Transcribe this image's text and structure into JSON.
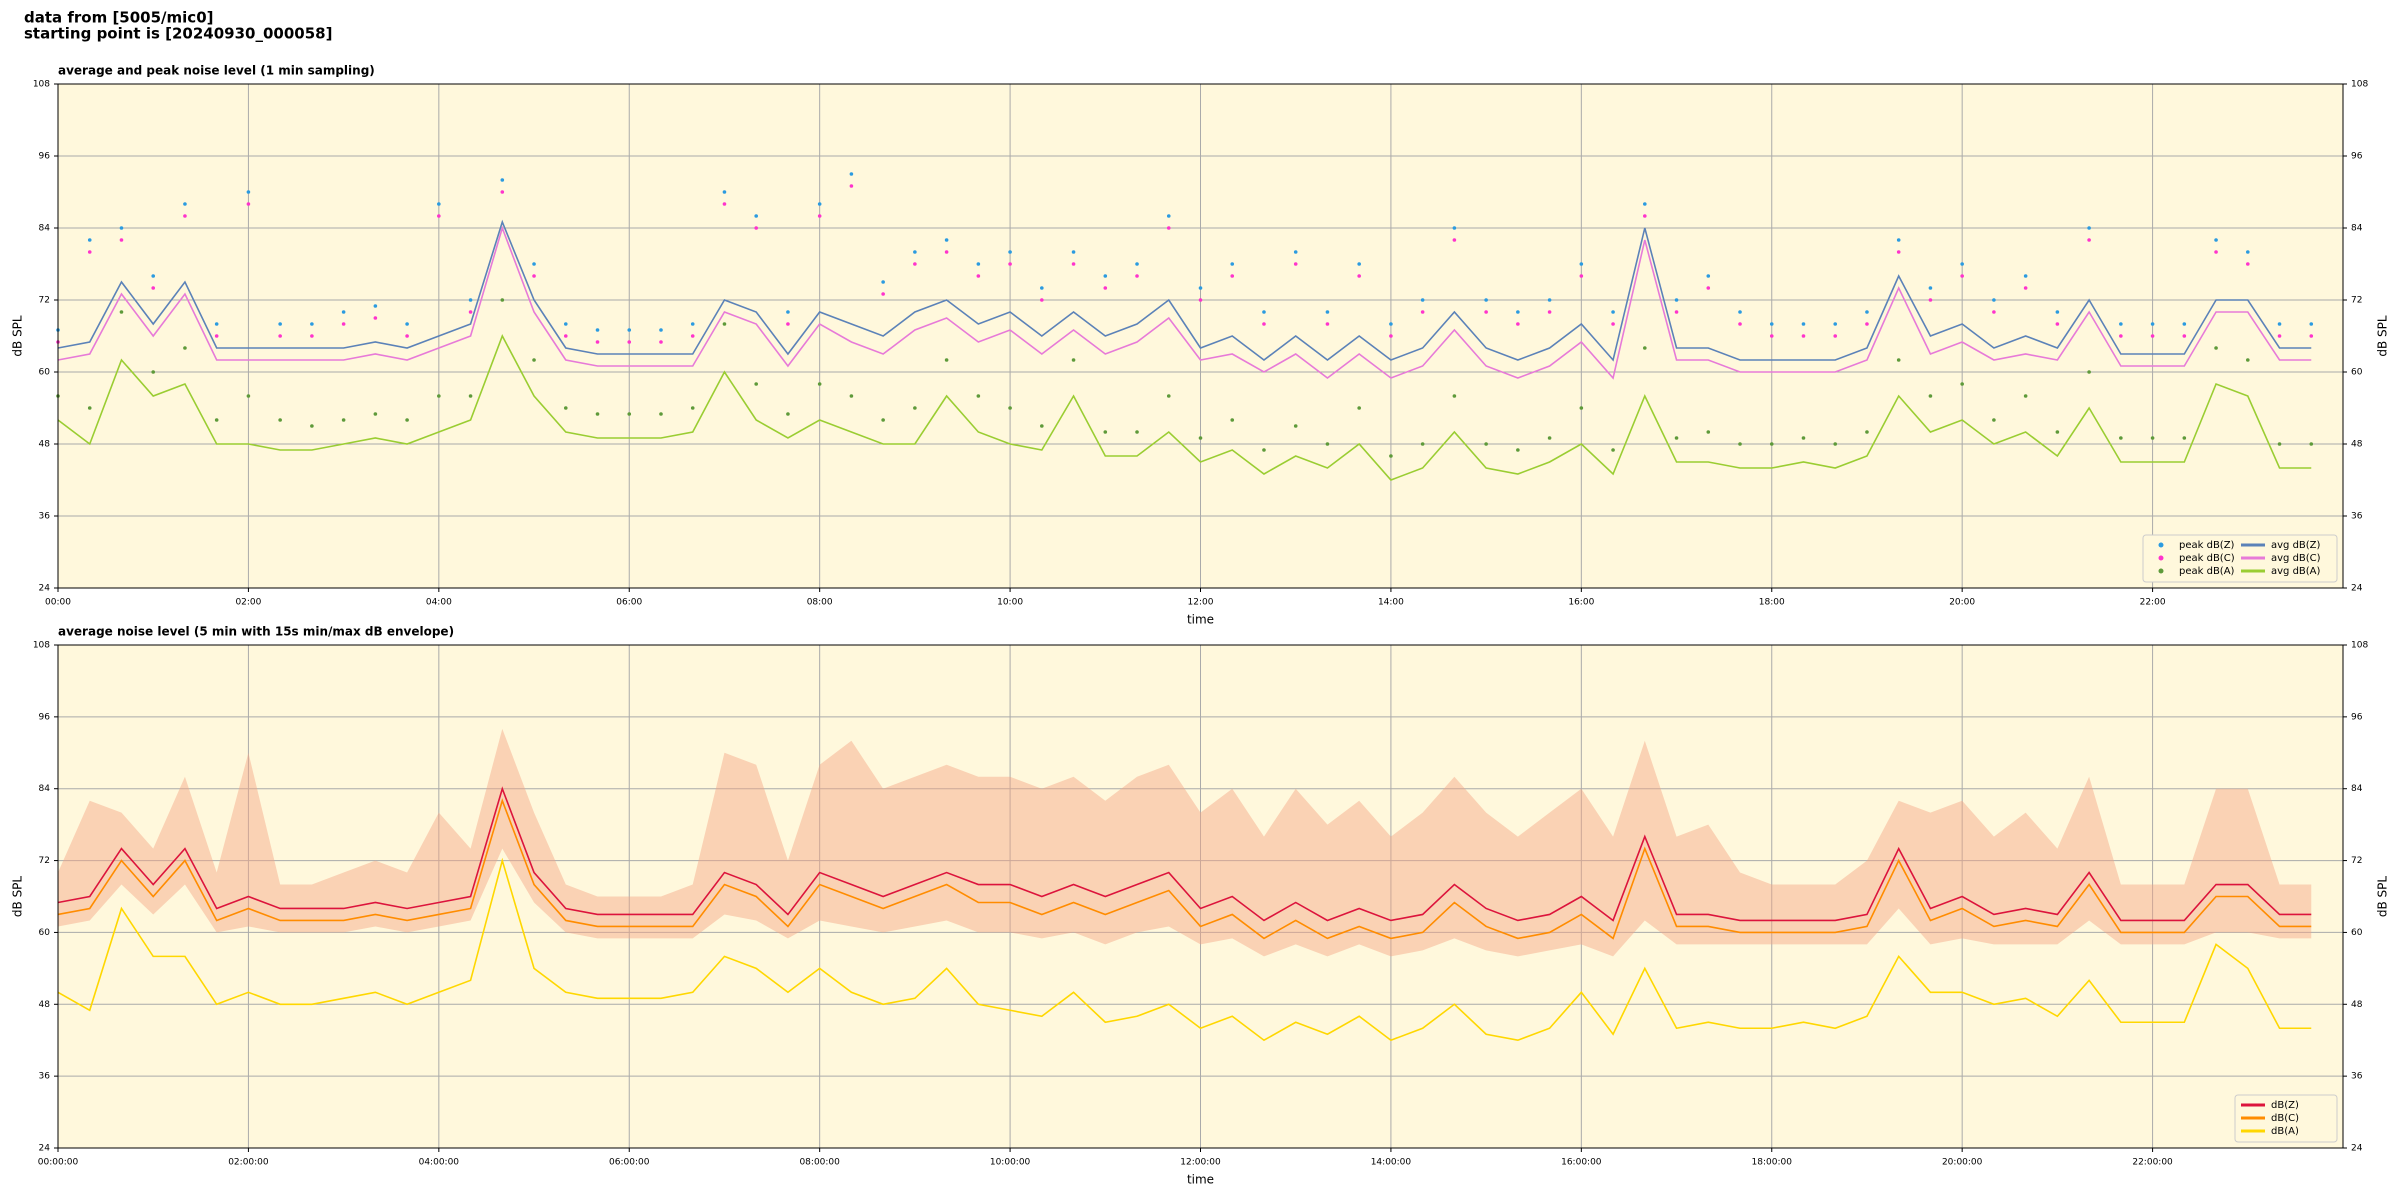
{
  "header": [
    "data from [5005/mic0]",
    "starting point is [20240930_000058]"
  ],
  "chart_data": [
    {
      "type": "line",
      "title": "average and peak noise level (1 min sampling)",
      "xlabel": "time",
      "ylabel": "dB SPL",
      "x": [
        "00:00",
        "00:20",
        "00:40",
        "01:00",
        "01:20",
        "01:40",
        "02:00",
        "02:20",
        "02:40",
        "03:00",
        "03:20",
        "03:40",
        "04:00",
        "04:20",
        "04:40",
        "05:00",
        "05:20",
        "05:40",
        "06:00",
        "06:20",
        "06:40",
        "07:00",
        "07:20",
        "07:40",
        "08:00",
        "08:20",
        "08:40",
        "09:00",
        "09:20",
        "09:40",
        "10:00",
        "10:20",
        "10:40",
        "11:00",
        "11:20",
        "11:40",
        "12:00",
        "12:20",
        "12:40",
        "13:00",
        "13:20",
        "13:40",
        "14:00",
        "14:20",
        "14:40",
        "15:00",
        "15:20",
        "15:40",
        "16:00",
        "16:20",
        "16:40",
        "17:00",
        "17:20",
        "17:40",
        "18:00",
        "18:20",
        "18:40",
        "19:00",
        "19:20",
        "19:40",
        "20:00",
        "20:20",
        "20:40",
        "21:00",
        "21:20",
        "21:40",
        "22:00",
        "22:20",
        "22:40",
        "23:00",
        "23:20",
        "23:40"
      ],
      "xlim": [
        "00:00",
        "24:00"
      ],
      "xticks": [
        "00:00",
        "02:00",
        "04:00",
        "06:00",
        "08:00",
        "10:00",
        "12:00",
        "14:00",
        "16:00",
        "18:00",
        "20:00",
        "22:00"
      ],
      "ylim": [
        24,
        108
      ],
      "yticks": [
        24,
        36,
        48,
        60,
        72,
        84,
        96,
        108
      ],
      "grid": true,
      "legend": "lower right",
      "legend_columns": 2,
      "background": "#fff8dc",
      "series": [
        {
          "name": "peak dB(Z)",
          "type": "scatter",
          "color": "#2b9be0",
          "values": [
            67,
            82,
            84,
            76,
            88,
            68,
            90,
            68,
            68,
            70,
            71,
            68,
            88,
            72,
            92,
            78,
            68,
            67,
            67,
            67,
            68,
            90,
            86,
            70,
            88,
            93,
            75,
            80,
            82,
            78,
            80,
            74,
            80,
            76,
            78,
            86,
            74,
            78,
            70,
            80,
            70,
            78,
            68,
            72,
            84,
            72,
            70,
            72,
            78,
            70,
            88,
            72,
            76,
            70,
            68,
            68,
            68,
            70,
            82,
            74,
            78,
            72,
            76,
            70,
            84,
            68,
            68,
            68,
            82,
            80,
            68,
            68
          ]
        },
        {
          "name": "peak dB(C)",
          "type": "scatter",
          "color": "#ff33cc",
          "values": [
            65,
            80,
            82,
            74,
            86,
            66,
            88,
            66,
            66,
            68,
            69,
            66,
            86,
            70,
            90,
            76,
            66,
            65,
            65,
            65,
            66,
            88,
            84,
            68,
            86,
            91,
            73,
            78,
            80,
            76,
            78,
            72,
            78,
            74,
            76,
            84,
            72,
            76,
            68,
            78,
            68,
            76,
            66,
            70,
            82,
            70,
            68,
            70,
            76,
            68,
            86,
            70,
            74,
            68,
            66,
            66,
            66,
            68,
            80,
            72,
            76,
            70,
            74,
            68,
            82,
            66,
            66,
            66,
            80,
            78,
            66,
            66
          ]
        },
        {
          "name": "peak dB(A)",
          "type": "scatter",
          "color": "#5e9a3a",
          "values": [
            56,
            54,
            70,
            60,
            64,
            52,
            56,
            52,
            51,
            52,
            53,
            52,
            56,
            56,
            72,
            62,
            54,
            53,
            53,
            53,
            54,
            68,
            58,
            53,
            58,
            56,
            52,
            54,
            62,
            56,
            54,
            51,
            62,
            50,
            50,
            56,
            49,
            52,
            47,
            51,
            48,
            54,
            46,
            48,
            56,
            48,
            47,
            49,
            54,
            47,
            64,
            49,
            50,
            48,
            48,
            49,
            48,
            50,
            62,
            56,
            58,
            52,
            56,
            50,
            60,
            49,
            49,
            49,
            64,
            62,
            48,
            48
          ]
        },
        {
          "name": "avg dB(Z)",
          "type": "line",
          "color": "#5b82b8",
          "values": [
            64,
            65,
            75,
            68,
            75,
            64,
            64,
            64,
            64,
            64,
            65,
            64,
            66,
            68,
            85,
            72,
            64,
            63,
            63,
            63,
            63,
            72,
            70,
            63,
            70,
            68,
            66,
            70,
            72,
            68,
            70,
            66,
            70,
            66,
            68,
            72,
            64,
            66,
            62,
            66,
            62,
            66,
            62,
            64,
            70,
            64,
            62,
            64,
            68,
            62,
            84,
            64,
            64,
            62,
            62,
            62,
            62,
            64,
            76,
            66,
            68,
            64,
            66,
            64,
            72,
            63,
            63,
            63,
            72,
            72,
            64,
            64
          ]
        },
        {
          "name": "avg dB(C)",
          "type": "line",
          "color": "#e77ad8",
          "values": [
            62,
            63,
            73,
            66,
            73,
            62,
            62,
            62,
            62,
            62,
            63,
            62,
            64,
            66,
            84,
            70,
            62,
            61,
            61,
            61,
            61,
            70,
            68,
            61,
            68,
            65,
            63,
            67,
            69,
            65,
            67,
            63,
            67,
            63,
            65,
            69,
            62,
            63,
            60,
            63,
            59,
            63,
            59,
            61,
            67,
            61,
            59,
            61,
            65,
            59,
            82,
            62,
            62,
            60,
            60,
            60,
            60,
            62,
            74,
            63,
            65,
            62,
            63,
            62,
            70,
            61,
            61,
            61,
            70,
            70,
            62,
            62
          ]
        },
        {
          "name": "avg dB(A)",
          "type": "line",
          "color": "#9acd32",
          "values": [
            52,
            48,
            62,
            56,
            58,
            48,
            48,
            47,
            47,
            48,
            49,
            48,
            50,
            52,
            66,
            56,
            50,
            49,
            49,
            49,
            50,
            60,
            52,
            49,
            52,
            50,
            48,
            48,
            56,
            50,
            48,
            47,
            56,
            46,
            46,
            50,
            45,
            47,
            43,
            46,
            44,
            48,
            42,
            44,
            50,
            44,
            43,
            45,
            48,
            43,
            56,
            45,
            45,
            44,
            44,
            45,
            44,
            46,
            56,
            50,
            52,
            48,
            50,
            46,
            54,
            45,
            45,
            45,
            58,
            56,
            44,
            44
          ]
        }
      ]
    },
    {
      "type": "line",
      "title": "average noise level (5 min with 15s min/max dB envelope)",
      "xlabel": "time",
      "ylabel": "dB SPL",
      "x": [
        "00:00",
        "00:20",
        "00:40",
        "01:00",
        "01:20",
        "01:40",
        "02:00",
        "02:20",
        "02:40",
        "03:00",
        "03:20",
        "03:40",
        "04:00",
        "04:20",
        "04:40",
        "05:00",
        "05:20",
        "05:40",
        "06:00",
        "06:20",
        "06:40",
        "07:00",
        "07:20",
        "07:40",
        "08:00",
        "08:20",
        "08:40",
        "09:00",
        "09:20",
        "09:40",
        "10:00",
        "10:20",
        "10:40",
        "11:00",
        "11:20",
        "11:40",
        "12:00",
        "12:20",
        "12:40",
        "13:00",
        "13:20",
        "13:40",
        "14:00",
        "14:20",
        "14:40",
        "15:00",
        "15:20",
        "15:40",
        "16:00",
        "16:20",
        "16:40",
        "17:00",
        "17:20",
        "17:40",
        "18:00",
        "18:20",
        "18:40",
        "19:00",
        "19:20",
        "19:40",
        "20:00",
        "20:20",
        "20:40",
        "21:00",
        "21:20",
        "21:40",
        "22:00",
        "22:20",
        "22:40",
        "23:00",
        "23:20",
        "23:40"
      ],
      "xlim": [
        "00:00",
        "24:00"
      ],
      "xticks": [
        "00:00:00",
        "02:00:00",
        "04:00:00",
        "06:00:00",
        "08:00:00",
        "10:00:00",
        "12:00:00",
        "14:00:00",
        "16:00:00",
        "18:00:00",
        "20:00:00",
        "22:00:00"
      ],
      "ylim": [
        24,
        108
      ],
      "yticks": [
        24,
        36,
        48,
        60,
        72,
        84,
        96,
        108
      ],
      "grid": true,
      "legend": "lower right",
      "legend_columns": 1,
      "background": "#fff8dc",
      "envelope": {
        "color": "#f4a582",
        "upper": [
          70,
          82,
          80,
          74,
          86,
          70,
          90,
          68,
          68,
          70,
          72,
          70,
          80,
          74,
          94,
          80,
          68,
          66,
          66,
          66,
          68,
          90,
          88,
          72,
          88,
          92,
          84,
          86,
          88,
          86,
          86,
          84,
          86,
          82,
          86,
          88,
          80,
          84,
          76,
          84,
          78,
          82,
          76,
          80,
          86,
          80,
          76,
          80,
          84,
          76,
          92,
          76,
          78,
          70,
          68,
          68,
          68,
          72,
          82,
          80,
          82,
          76,
          80,
          74,
          86,
          68,
          68,
          68,
          84,
          84,
          68,
          68
        ],
        "lower": [
          61,
          62,
          68,
          63,
          68,
          60,
          61,
          60,
          60,
          60,
          61,
          60,
          61,
          62,
          74,
          65,
          60,
          59,
          59,
          59,
          59,
          63,
          62,
          59,
          62,
          61,
          60,
          61,
          62,
          60,
          60,
          59,
          60,
          58,
          60,
          61,
          58,
          59,
          56,
          58,
          56,
          58,
          56,
          57,
          59,
          57,
          56,
          57,
          58,
          56,
          62,
          58,
          58,
          58,
          58,
          58,
          58,
          58,
          64,
          58,
          59,
          58,
          58,
          58,
          62,
          58,
          58,
          58,
          60,
          60,
          59,
          59
        ]
      },
      "series": [
        {
          "name": "dB(Z)",
          "type": "line",
          "color": "#dc143c",
          "values": [
            65,
            66,
            74,
            68,
            74,
            64,
            66,
            64,
            64,
            64,
            65,
            64,
            65,
            66,
            84,
            70,
            64,
            63,
            63,
            63,
            63,
            70,
            68,
            63,
            70,
            68,
            66,
            68,
            70,
            68,
            68,
            66,
            68,
            66,
            68,
            70,
            64,
            66,
            62,
            65,
            62,
            64,
            62,
            63,
            68,
            64,
            62,
            63,
            66,
            62,
            76,
            63,
            63,
            62,
            62,
            62,
            62,
            63,
            74,
            64,
            66,
            63,
            64,
            63,
            70,
            62,
            62,
            62,
            68,
            68,
            63,
            63
          ]
        },
        {
          "name": "dB(C)",
          "type": "line",
          "color": "#ff8c00",
          "values": [
            63,
            64,
            72,
            66,
            72,
            62,
            64,
            62,
            62,
            62,
            63,
            62,
            63,
            64,
            82,
            68,
            62,
            61,
            61,
            61,
            61,
            68,
            66,
            61,
            68,
            66,
            64,
            66,
            68,
            65,
            65,
            63,
            65,
            63,
            65,
            67,
            61,
            63,
            59,
            62,
            59,
            61,
            59,
            60,
            65,
            61,
            59,
            60,
            63,
            59,
            74,
            61,
            61,
            60,
            60,
            60,
            60,
            61,
            72,
            62,
            64,
            61,
            62,
            61,
            68,
            60,
            60,
            60,
            66,
            66,
            61,
            61
          ]
        },
        {
          "name": "dB(A)",
          "type": "line",
          "color": "#ffd700",
          "values": [
            50,
            47,
            64,
            56,
            56,
            48,
            50,
            48,
            48,
            49,
            50,
            48,
            50,
            52,
            72,
            54,
            50,
            49,
            49,
            49,
            50,
            56,
            54,
            50,
            54,
            50,
            48,
            49,
            54,
            48,
            47,
            46,
            50,
            45,
            46,
            48,
            44,
            46,
            42,
            45,
            43,
            46,
            42,
            44,
            48,
            43,
            42,
            44,
            50,
            43,
            54,
            44,
            45,
            44,
            44,
            45,
            44,
            46,
            56,
            50,
            50,
            48,
            49,
            46,
            52,
            45,
            45,
            45,
            58,
            54,
            44,
            44
          ]
        }
      ]
    }
  ]
}
